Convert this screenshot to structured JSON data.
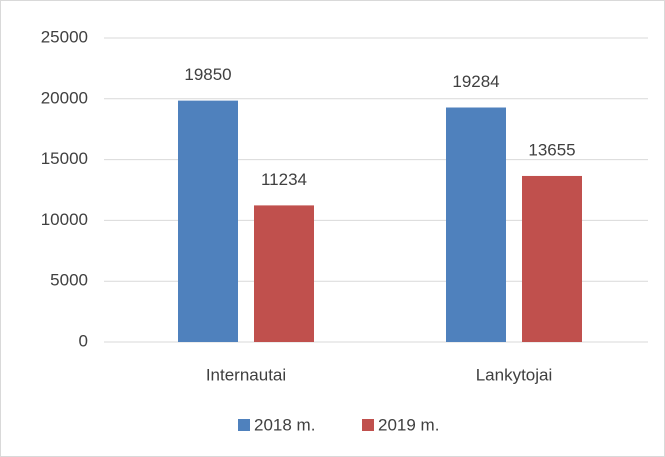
{
  "chart_data": {
    "type": "bar",
    "categories": [
      "Internautai",
      "Lankytojai"
    ],
    "series": [
      {
        "name": "2018 m.",
        "color": "#4f81bd",
        "values": [
          19850,
          19284
        ]
      },
      {
        "name": "2019 m.",
        "color": "#c0504d",
        "values": [
          11234,
          13655
        ]
      }
    ],
    "ylim": [
      0,
      25000
    ],
    "yticks": [
      0,
      5000,
      10000,
      15000,
      20000,
      25000
    ],
    "grid": true,
    "legend": "bottom"
  }
}
